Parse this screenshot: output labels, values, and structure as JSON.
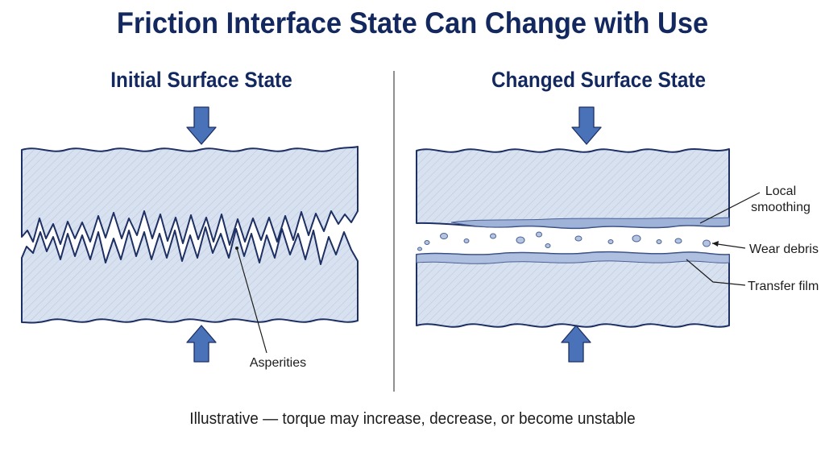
{
  "title": "Friction Interface State Can Change with Use",
  "panels": {
    "left": {
      "title": "Initial Surface State",
      "label": "Asperities"
    },
    "right": {
      "title": "Changed Surface State",
      "labels": {
        "local_smoothing_line1": "Local",
        "local_smoothing_line2": "smoothing",
        "wear_debris": "Wear debris",
        "transfer_film": "Transfer film"
      }
    }
  },
  "caption": "Illustrative — torque may increase, decrease, or become unstable",
  "colors": {
    "title": "#13285e",
    "block_fill": "#d6e0ee",
    "outline": "#1d2f63",
    "arrow": "#4a72b8",
    "film": "#7b95c4"
  }
}
